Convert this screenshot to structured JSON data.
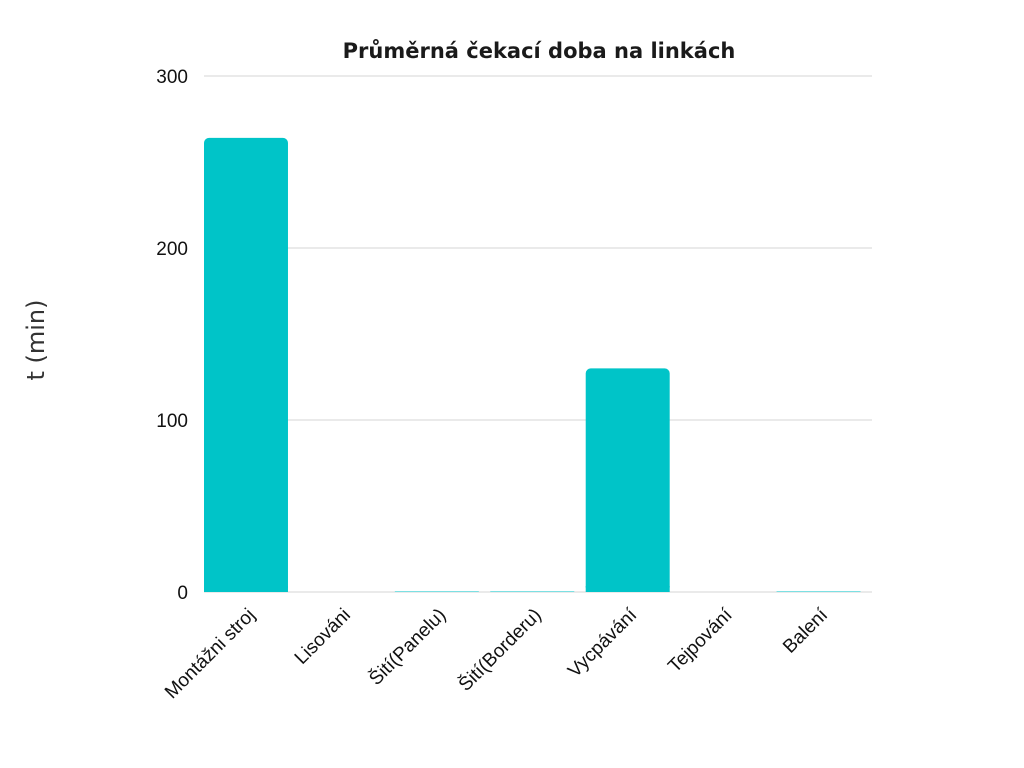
{
  "chart_data": {
    "type": "bar",
    "title": "Průměrná čekací doba na linkách",
    "xlabel": "",
    "ylabel": "t (min)",
    "categories": [
      "Montážni stroj",
      "Lisováni",
      "Šití(Panelu)",
      "Šití(Borderu)",
      "Vycpávání",
      "Tejpování",
      "Balení"
    ],
    "values": [
      264,
      0,
      0.3,
      0.3,
      130,
      0,
      0.3
    ],
    "ylim": [
      0,
      300
    ],
    "yticks": [
      0,
      100,
      200,
      300
    ],
    "grid": true,
    "legend": "none",
    "bar_color": "#00c4c8"
  }
}
